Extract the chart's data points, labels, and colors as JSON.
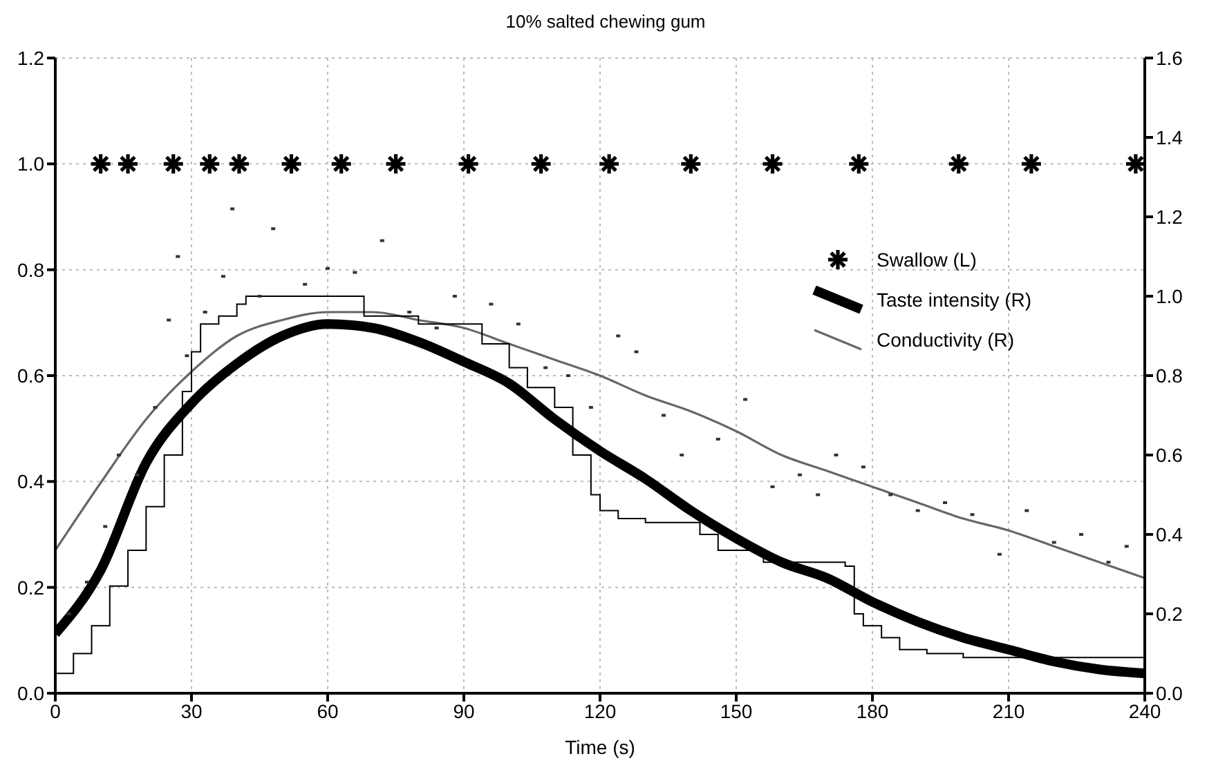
{
  "chart_data": {
    "type": "line",
    "title": "10% salted chewing gum",
    "xlabel": "Time (s)",
    "xlim": [
      0,
      240
    ],
    "xticks": [
      0,
      30,
      60,
      90,
      120,
      150,
      180,
      210,
      240
    ],
    "ylim": [
      0,
      1.2
    ],
    "yticks": [
      {
        "value": 0,
        "label": "0.0"
      },
      {
        "value": 0.2,
        "label": "0.2"
      },
      {
        "value": 0.4,
        "label": "0.4"
      },
      {
        "value": 0.6,
        "label": "0.6"
      },
      {
        "value": 0.8,
        "label": "0.8"
      },
      {
        "value": 1,
        "label": "1.0"
      },
      {
        "value": 1.2,
        "label": "1.2"
      }
    ],
    "y2lim": [
      0,
      1.6
    ],
    "y2ticks": [
      {
        "value": 0,
        "label": "0.0"
      },
      {
        "value": 0.2,
        "label": "0.2"
      },
      {
        "value": 0.4,
        "label": "0.4"
      },
      {
        "value": 0.6,
        "label": "0.6"
      },
      {
        "value": 0.8,
        "label": "0.8"
      },
      {
        "value": 1,
        "label": "1.0"
      },
      {
        "value": 1.2,
        "label": "1.2"
      },
      {
        "value": 1.4,
        "label": "1.4"
      },
      {
        "value": 1.6,
        "label": "1.6"
      }
    ],
    "grid": true,
    "legend": "top right",
    "series": [
      {
        "name": "Swallow (L)",
        "type": "scatter",
        "marker": "cross",
        "color": "#000000",
        "x": [
          10,
          16,
          26,
          34,
          40.5,
          52,
          63,
          75,
          91,
          107,
          122,
          140,
          158,
          177,
          199,
          215,
          238
        ],
        "values": [
          1,
          1,
          1,
          1,
          1,
          1,
          1,
          1,
          1,
          1,
          1,
          1,
          1,
          1,
          1,
          1,
          1
        ]
      },
      {
        "name": "Taste intensity (R)",
        "axis": "y2",
        "color": "#000000",
        "x": [
          0,
          10,
          20,
          30,
          40,
          50,
          60,
          70,
          80,
          90,
          100,
          110,
          120,
          130,
          140,
          150,
          160,
          170,
          180,
          190,
          200,
          210,
          220,
          230,
          240
        ],
        "values": [
          0.15,
          0.31,
          0.58,
          0.73,
          0.83,
          0.9,
          0.93,
          0.92,
          0.885,
          0.835,
          0.78,
          0.69,
          0.61,
          0.54,
          0.46,
          0.39,
          0.33,
          0.29,
          0.23,
          0.18,
          0.14,
          0.11,
          0.08,
          0.06,
          0.05
        ]
      },
      {
        "name": "Conductivity (R)",
        "axis": "y2",
        "color": "#666666",
        "x": [
          0,
          10,
          20,
          30,
          40,
          50,
          60,
          70,
          80,
          90,
          100,
          110,
          120,
          130,
          140,
          150,
          160,
          170,
          180,
          190,
          200,
          210,
          220,
          230,
          240
        ],
        "values": [
          0.36,
          0.53,
          0.69,
          0.81,
          0.9,
          0.94,
          0.96,
          0.96,
          0.94,
          0.92,
          0.88,
          0.84,
          0.8,
          0.75,
          0.71,
          0.66,
          0.6,
          0.56,
          0.52,
          0.48,
          0.44,
          0.41,
          0.37,
          0.33,
          0.29
        ]
      },
      {
        "type": "step",
        "axis": "y2",
        "color": "#000000",
        "x": [
          0,
          4,
          8,
          12,
          16,
          20,
          24,
          28,
          30,
          32,
          36,
          40,
          42,
          68,
          80,
          94,
          100,
          104,
          110,
          114,
          118,
          120,
          124,
          130,
          142,
          146,
          156,
          174,
          176,
          178,
          182,
          186,
          192,
          200,
          240
        ],
        "values": [
          0.05,
          0.1,
          0.17,
          0.27,
          0.36,
          0.47,
          0.6,
          0.76,
          0.86,
          0.93,
          0.95,
          0.98,
          1.0,
          0.95,
          0.93,
          0.88,
          0.82,
          0.77,
          0.72,
          0.6,
          0.5,
          0.46,
          0.44,
          0.43,
          0.4,
          0.36,
          0.33,
          0.32,
          0.2,
          0.17,
          0.14,
          0.11,
          0.1,
          0.09,
          0.09
        ]
      },
      {
        "type": "scatter",
        "axis": "y2",
        "marker": "square",
        "color": "#333333",
        "x": [
          3,
          7,
          11,
          14,
          18,
          22,
          25,
          27,
          29,
          33,
          37,
          39,
          45,
          48,
          55,
          60,
          66,
          72,
          78,
          84,
          88,
          96,
          102,
          108,
          113,
          118,
          124,
          128,
          134,
          138,
          146,
          152,
          158,
          164,
          168,
          172,
          178,
          184,
          190,
          196,
          202,
          208,
          214,
          220,
          226,
          232,
          236
        ],
        "values": [
          0.2,
          0.28,
          0.42,
          0.6,
          0.55,
          0.72,
          0.94,
          1.1,
          0.85,
          0.96,
          1.05,
          1.22,
          1.0,
          1.17,
          1.03,
          1.07,
          1.06,
          1.14,
          0.96,
          0.92,
          1.0,
          0.98,
          0.93,
          0.82,
          0.8,
          0.72,
          0.9,
          0.86,
          0.7,
          0.6,
          0.64,
          0.74,
          0.52,
          0.55,
          0.5,
          0.6,
          0.57,
          0.5,
          0.46,
          0.48,
          0.45,
          0.35,
          0.46,
          0.38,
          0.4,
          0.33,
          0.37
        ]
      }
    ]
  }
}
